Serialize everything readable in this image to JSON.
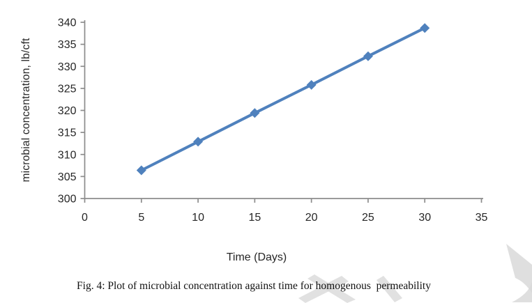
{
  "figure": {
    "caption": "Fig. 4: Plot of microbial concentration against time for homogenous  permeability"
  },
  "chart_data": {
    "type": "line",
    "title": "",
    "xlabel": "Time (Days)",
    "ylabel": "microbial concentration, lb/cft",
    "x": [
      5,
      10,
      15,
      20,
      25,
      30
    ],
    "series": [
      {
        "name": "microbial concentration",
        "values": [
          306.4,
          312.9,
          319.4,
          325.8,
          332.3,
          338.7
        ]
      }
    ],
    "xlim": [
      0,
      35
    ],
    "ylim": [
      300,
      340
    ],
    "x_ticks": [
      0,
      5,
      10,
      15,
      20,
      25,
      30,
      35
    ],
    "y_ticks": [
      300,
      305,
      310,
      315,
      320,
      325,
      330,
      335,
      340
    ],
    "grid": false,
    "legend": "none",
    "line_color": "#4F81BD",
    "marker": "diamond",
    "axis_color": "#8C8C8C",
    "tick_label_color": "#262626"
  },
  "watermark": {
    "color": "#D9D9D9"
  }
}
